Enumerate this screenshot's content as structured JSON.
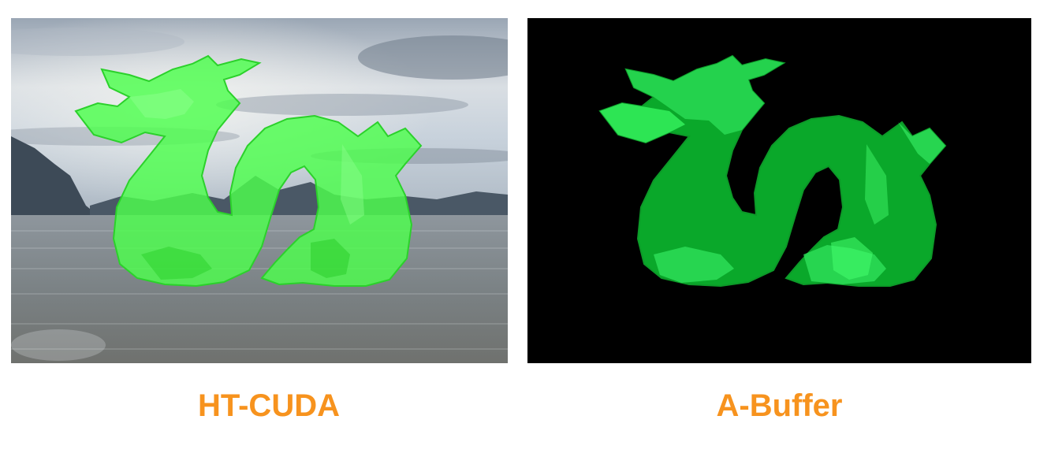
{
  "panels": [
    {
      "caption": "HT-CUDA",
      "background": "sky-and-lake-scene",
      "subject": "dragon-render"
    },
    {
      "caption": "A-Buffer",
      "background": "black",
      "subject": "dragon-render"
    }
  ],
  "colors": {
    "caption": "#f7931e",
    "dragon_light": "#5cff5c",
    "dragon_dark": "#0aa82a",
    "right_background": "#000000"
  }
}
